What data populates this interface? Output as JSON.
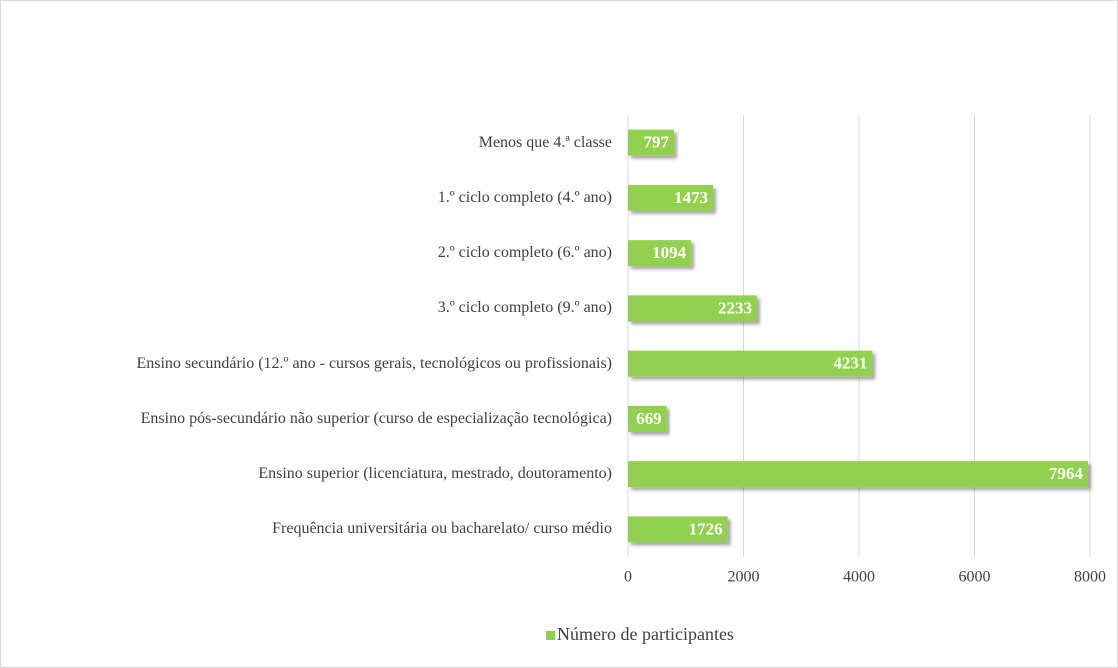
{
  "chart_data": {
    "type": "bar",
    "orientation": "horizontal",
    "categories": [
      "Menos que 4.ª classe",
      "1.º ciclo completo (4.º ano)",
      "2.º ciclo completo (6.º ano)",
      "3.º ciclo completo (9.º ano)",
      "Ensino secundário (12.º ano - cursos gerais, tecnológicos ou profissionais)",
      "Ensino pós-secundário não superior (curso de especialização tecnológica)",
      "Ensino superior (licenciatura, mestrado, doutoramento)",
      "Frequência universitária ou bacharelato/ curso médio"
    ],
    "series": [
      {
        "name": "Número de participantes",
        "color": "#92d050",
        "values": [
          797,
          1473,
          1094,
          2233,
          4231,
          669,
          7964,
          1726
        ]
      }
    ],
    "xlim": [
      0,
      8000
    ],
    "xticks": [
      0,
      2000,
      4000,
      6000,
      8000
    ],
    "grid": true,
    "legend": "bottom"
  }
}
